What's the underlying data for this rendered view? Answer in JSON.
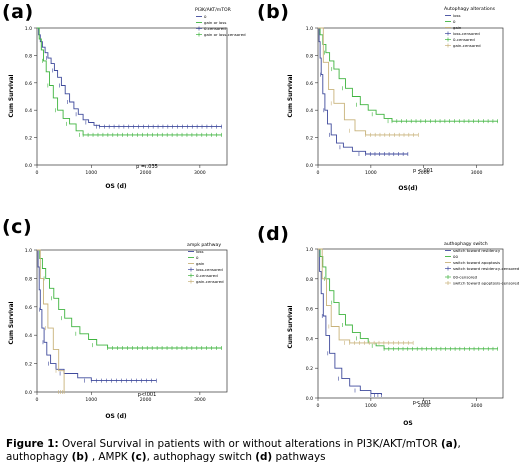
{
  "caption": {
    "fig_label": "Figure 1:",
    "text_before": " Overal Survival in patients with or without alterations in PI3K/AKT/mTOR ",
    "a": "(a)",
    "t1": ", authophagy ",
    "b": "(b)",
    "t2": " , AMPK ",
    "c": "(c)",
    "t3": ", authophagy switch ",
    "d": "(d)",
    "t4": " pathways"
  },
  "colors": {
    "blue": "#3f4a9c",
    "green": "#3fb43f",
    "tan": "#c8b27a"
  },
  "chart_data": [
    {
      "panel": "(a)",
      "type": "line",
      "subtype": "kaplan-meier",
      "xlabel": "OS (d)",
      "ylabel": "Cum Survival",
      "xlim": [
        0,
        3500
      ],
      "ylim": [
        0,
        1.0
      ],
      "x_ticks": [
        "0",
        "1000",
        "2000",
        "3000"
      ],
      "y_ticks": [
        "0.0",
        "0.2",
        "0.4",
        "0.6",
        "0.8",
        "1.0"
      ],
      "legend_title": "PI3K/AKT/mTOR",
      "legend": [
        "0",
        "gain or loss",
        "0-censored",
        "gain or loss-censored"
      ],
      "annotation": "p = .035",
      "series": [
        {
          "name": "0",
          "color": "blue",
          "points": [
            [
              0,
              1.0
            ],
            [
              30,
              0.95
            ],
            [
              60,
              0.9
            ],
            [
              100,
              0.86
            ],
            [
              150,
              0.82
            ],
            [
              200,
              0.78
            ],
            [
              260,
              0.74
            ],
            [
              320,
              0.69
            ],
            [
              380,
              0.64
            ],
            [
              450,
              0.58
            ],
            [
              520,
              0.52
            ],
            [
              600,
              0.46
            ],
            [
              680,
              0.41
            ],
            [
              760,
              0.37
            ],
            [
              850,
              0.33
            ],
            [
              950,
              0.31
            ],
            [
              1050,
              0.29
            ],
            [
              1150,
              0.28
            ],
            [
              3400,
              0.28
            ]
          ]
        },
        {
          "name": "gain or loss",
          "color": "green",
          "points": [
            [
              0,
              1.0
            ],
            [
              40,
              0.92
            ],
            [
              80,
              0.84
            ],
            [
              120,
              0.76
            ],
            [
              170,
              0.68
            ],
            [
              230,
              0.58
            ],
            [
              300,
              0.49
            ],
            [
              380,
              0.4
            ],
            [
              480,
              0.34
            ],
            [
              600,
              0.3
            ],
            [
              720,
              0.25
            ],
            [
              850,
              0.22
            ],
            [
              3400,
              0.22
            ]
          ]
        }
      ]
    },
    {
      "panel": "(b)",
      "type": "line",
      "subtype": "kaplan-meier",
      "xlabel": "OS(d)",
      "ylabel": "Cum Survival",
      "xlim": [
        0,
        3500
      ],
      "ylim": [
        0,
        1.0
      ],
      "x_ticks": [
        "0",
        "1000",
        "2000",
        "3000"
      ],
      "y_ticks": [
        "0.0",
        "0.2",
        "0.4",
        "0.6",
        "0.8",
        "1.0"
      ],
      "legend_title": "Autophagy alterations",
      "legend": [
        "loss",
        "0",
        "gain",
        "loss-censored",
        "0-censored",
        "gain-censored"
      ],
      "annotation": "p <.001",
      "series": [
        {
          "name": "loss",
          "color": "blue",
          "points": [
            [
              0,
              1.0
            ],
            [
              20,
              0.9
            ],
            [
              40,
              0.78
            ],
            [
              60,
              0.66
            ],
            [
              90,
              0.52
            ],
            [
              130,
              0.4
            ],
            [
              180,
              0.3
            ],
            [
              250,
              0.22
            ],
            [
              350,
              0.16
            ],
            [
              480,
              0.13
            ],
            [
              650,
              0.1
            ],
            [
              900,
              0.08
            ],
            [
              1700,
              0.08
            ]
          ]
        },
        {
          "name": "0",
          "color": "green",
          "points": [
            [
              0,
              1.0
            ],
            [
              40,
              0.95
            ],
            [
              90,
              0.88
            ],
            [
              150,
              0.82
            ],
            [
              220,
              0.76
            ],
            [
              300,
              0.7
            ],
            [
              400,
              0.63
            ],
            [
              520,
              0.56
            ],
            [
              650,
              0.5
            ],
            [
              800,
              0.44
            ],
            [
              950,
              0.4
            ],
            [
              1100,
              0.37
            ],
            [
              1250,
              0.34
            ],
            [
              1400,
              0.32
            ],
            [
              3400,
              0.32
            ]
          ]
        },
        {
          "name": "gain",
          "color": "tan",
          "points": [
            [
              0,
              1.0
            ],
            [
              100,
              0.75
            ],
            [
              200,
              0.55
            ],
            [
              300,
              0.45
            ],
            [
              500,
              0.33
            ],
            [
              700,
              0.25
            ],
            [
              900,
              0.22
            ],
            [
              1900,
              0.22
            ]
          ]
        }
      ]
    },
    {
      "panel": "(c)",
      "type": "line",
      "subtype": "kaplan-meier",
      "xlabel": "OS (d)",
      "ylabel": "Cum Survival",
      "xlim": [
        0,
        3500
      ],
      "ylim": [
        0,
        1.0
      ],
      "x_ticks": [
        "0",
        "1000",
        "2000",
        "3000"
      ],
      "y_ticks": [
        "0.0",
        "0.2",
        "0.4",
        "0.6",
        "0.8",
        "1.0"
      ],
      "legend_title": "ampk pathway",
      "legend": [
        "loss",
        "0",
        "gain",
        "loss-censored",
        "0-censored",
        "gain-censored"
      ],
      "annotation": "p<.001",
      "series": [
        {
          "name": "loss",
          "color": "blue",
          "points": [
            [
              0,
              1.0
            ],
            [
              20,
              0.88
            ],
            [
              40,
              0.72
            ],
            [
              60,
              0.58
            ],
            [
              90,
              0.45
            ],
            [
              130,
              0.35
            ],
            [
              180,
              0.26
            ],
            [
              250,
              0.2
            ],
            [
              350,
              0.16
            ],
            [
              500,
              0.13
            ],
            [
              750,
              0.1
            ],
            [
              1000,
              0.08
            ],
            [
              2200,
              0.08
            ]
          ]
        },
        {
          "name": "0",
          "color": "green",
          "points": [
            [
              0,
              1.0
            ],
            [
              50,
              0.94
            ],
            [
              100,
              0.87
            ],
            [
              160,
              0.8
            ],
            [
              230,
              0.73
            ],
            [
              310,
              0.66
            ],
            [
              400,
              0.58
            ],
            [
              510,
              0.52
            ],
            [
              640,
              0.46
            ],
            [
              790,
              0.41
            ],
            [
              950,
              0.37
            ],
            [
              1100,
              0.33
            ],
            [
              1300,
              0.31
            ],
            [
              3400,
              0.31
            ]
          ]
        },
        {
          "name": "gain",
          "color": "tan",
          "points": [
            [
              0,
              1.0
            ],
            [
              60,
              0.8
            ],
            [
              120,
              0.62
            ],
            [
              200,
              0.45
            ],
            [
              300,
              0.3
            ],
            [
              400,
              0.15
            ],
            [
              500,
              0.0
            ]
          ]
        }
      ]
    },
    {
      "panel": "(d)",
      "type": "line",
      "subtype": "kaplan-meier",
      "xlabel": "OS",
      "ylabel": "Cum Survival",
      "xlim": [
        0,
        3500
      ],
      "ylim": [
        0,
        1.0
      ],
      "x_ticks": [
        "0",
        "1000",
        "2000",
        "3000"
      ],
      "y_ticks": [
        "0.0",
        "0.2",
        "0.4",
        "0.6",
        "0.8",
        "1.0"
      ],
      "legend_title": "authophagy switch",
      "legend": [
        "switch toward residency",
        "00",
        "switch toward apoptosis",
        "switch toward residency-censored",
        "00-censored",
        "switch toward apoptosis-censored"
      ],
      "annotation": "p<.001",
      "series": [
        {
          "name": "switch toward residency",
          "color": "blue",
          "points": [
            [
              0,
              1.0
            ],
            [
              30,
              0.85
            ],
            [
              60,
              0.7
            ],
            [
              100,
              0.55
            ],
            [
              150,
              0.42
            ],
            [
              220,
              0.3
            ],
            [
              320,
              0.2
            ],
            [
              450,
              0.13
            ],
            [
              600,
              0.08
            ],
            [
              800,
              0.05
            ],
            [
              1000,
              0.03
            ],
            [
              1200,
              0.02
            ]
          ]
        },
        {
          "name": "00",
          "color": "green",
          "points": [
            [
              0,
              1.0
            ],
            [
              40,
              0.95
            ],
            [
              90,
              0.88
            ],
            [
              150,
              0.8
            ],
            [
              220,
              0.72
            ],
            [
              300,
              0.64
            ],
            [
              400,
              0.56
            ],
            [
              520,
              0.49
            ],
            [
              650,
              0.44
            ],
            [
              800,
              0.4
            ],
            [
              950,
              0.37
            ],
            [
              1100,
              0.35
            ],
            [
              1250,
              0.33
            ],
            [
              3400,
              0.33
            ]
          ]
        },
        {
          "name": "switch toward apoptosis",
          "color": "tan",
          "points": [
            [
              0,
              1.0
            ],
            [
              80,
              0.8
            ],
            [
              160,
              0.62
            ],
            [
              250,
              0.48
            ],
            [
              400,
              0.39
            ],
            [
              600,
              0.37
            ],
            [
              1800,
              0.37
            ]
          ]
        }
      ]
    }
  ]
}
